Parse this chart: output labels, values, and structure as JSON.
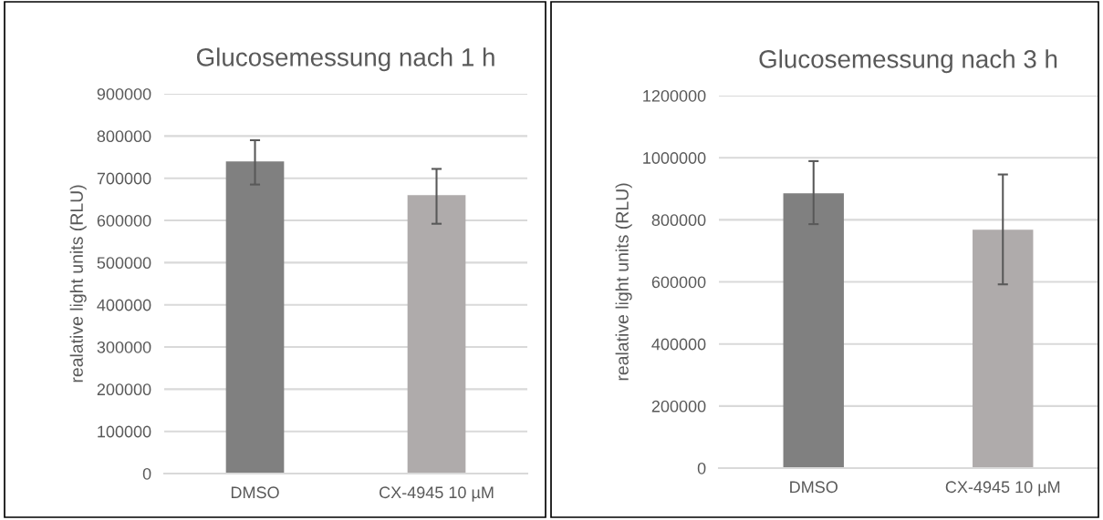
{
  "chart_data": [
    {
      "type": "bar",
      "title": "Glucosemessung nach 1 h",
      "ylabel": "realative light units (RLU)",
      "categories": [
        "DMSO",
        "CX-4945 10 µM"
      ],
      "values": [
        740000,
        660000
      ],
      "colors": [
        "#808080",
        "#afabab"
      ],
      "errors": [
        [
          685000,
          790000
        ],
        [
          592000,
          722000
        ]
      ],
      "ylim": [
        0,
        900000
      ],
      "yticks": [
        0,
        100000,
        200000,
        300000,
        400000,
        500000,
        600000,
        700000,
        800000,
        900000
      ],
      "grid": "y"
    },
    {
      "type": "bar",
      "title": "Glucosemessung nach 3 h",
      "ylabel": "realative light units (RLU)",
      "categories": [
        "DMSO",
        "CX-4945 10 µM"
      ],
      "values": [
        885000,
        768000
      ],
      "colors": [
        "#808080",
        "#afabab"
      ],
      "errors": [
        [
          786000,
          989000
        ],
        [
          592000,
          946000
        ]
      ],
      "ylim": [
        0,
        1200000
      ],
      "yticks": [
        0,
        200000,
        400000,
        600000,
        800000,
        1000000,
        1200000
      ],
      "grid": "y"
    }
  ]
}
